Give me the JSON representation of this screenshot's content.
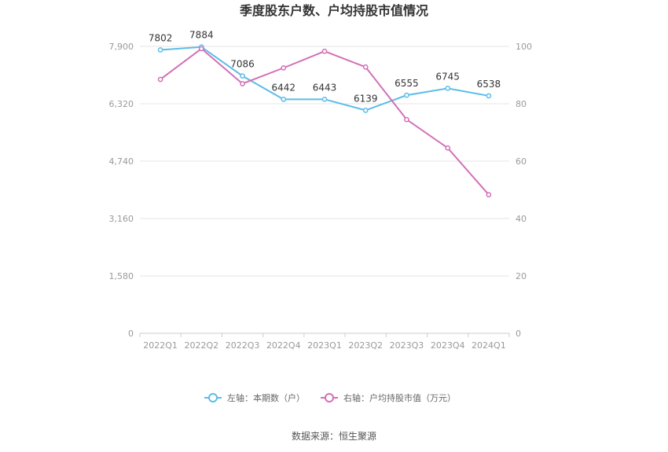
{
  "chart_data": {
    "type": "line",
    "title": "季度股东户数、户均持股市值情况",
    "categories": [
      "2022Q1",
      "2022Q2",
      "2022Q3",
      "2022Q4",
      "2023Q1",
      "2023Q2",
      "2023Q3",
      "2023Q4",
      "2024Q1"
    ],
    "y_left": {
      "ticks": [
        "0",
        "1,580",
        "3,160",
        "4,740",
        "6,320",
        "7,900"
      ],
      "min": 0,
      "max": 7900
    },
    "y_right": {
      "ticks": [
        "0",
        "20",
        "40",
        "60",
        "80",
        "100"
      ],
      "min": 0,
      "max": 100
    },
    "series": [
      {
        "name": "左轴：本期数（户）",
        "axis": "left",
        "color": "#5bbde8",
        "values": [
          7802,
          7884,
          7086,
          6442,
          6443,
          6139,
          6555,
          6745,
          6538
        ],
        "labels": [
          "7802",
          "7884",
          "7086",
          "6442",
          "6443",
          "6139",
          "6555",
          "6745",
          "6538"
        ]
      },
      {
        "name": "右轴：户均持股市值（万元）",
        "axis": "right",
        "color": "#d36fb7",
        "values": [
          88.5,
          99.2,
          87.0,
          92.5,
          98.3,
          92.8,
          74.5,
          64.6,
          48.3
        ]
      }
    ],
    "legend_position": "bottom",
    "grid": true
  },
  "source": "数据来源：恒生聚源"
}
